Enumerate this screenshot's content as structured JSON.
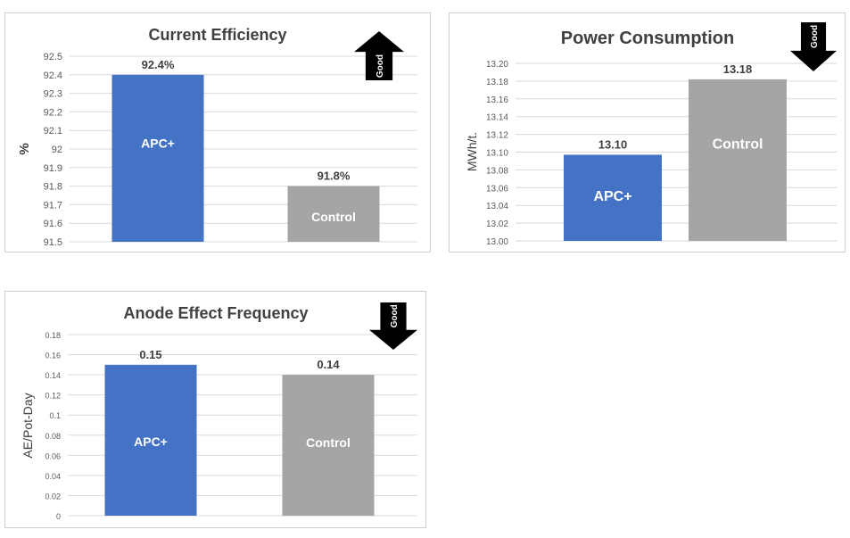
{
  "chart_data": [
    {
      "type": "bar",
      "title": "Current Efficiency",
      "ylabel": "%",
      "categories": [
        "APC+",
        "Control"
      ],
      "values": [
        92.4,
        91.8
      ],
      "data_labels": [
        "92.4%",
        "91.8%"
      ],
      "ylim": [
        91.5,
        92.5
      ],
      "ticks": [
        "91.5",
        "91.6",
        "91.7",
        "91.8",
        "91.9",
        "92",
        "92.1",
        "92.2",
        "92.3",
        "92.4",
        "92.5"
      ],
      "grid": true,
      "indicator": {
        "label": "Good",
        "direction": "up"
      },
      "colors": [
        "#4472C4",
        "#A5A5A5"
      ]
    },
    {
      "type": "bar",
      "title": "Power Consumption",
      "ylabel": "MWh/t.",
      "categories": [
        "APC+",
        "Control"
      ],
      "values": [
        13.097,
        13.182
      ],
      "data_labels": [
        "13.10",
        "13.18"
      ],
      "ylim": [
        13.0,
        13.2
      ],
      "ticks": [
        "13.00",
        "13.02",
        "13.04",
        "13.06",
        "13.08",
        "13.10",
        "13.12",
        "13.14",
        "13.16",
        "13.18",
        "13.20"
      ],
      "grid": true,
      "indicator": {
        "label": "Good",
        "direction": "down"
      },
      "colors": [
        "#4472C4",
        "#A5A5A5"
      ]
    },
    {
      "type": "bar",
      "title": "Anode Effect Frequency",
      "ylabel": "AE/Pot-Day",
      "categories": [
        "APC+",
        "Control"
      ],
      "values": [
        0.15,
        0.14
      ],
      "data_labels": [
        "0.15",
        "0.14"
      ],
      "ylim": [
        0,
        0.18
      ],
      "ticks": [
        "0",
        "0.02",
        "0.04",
        "0.06",
        "0.08",
        "0.1",
        "0.12",
        "0.14",
        "0.16",
        "0.18"
      ],
      "grid": true,
      "indicator": {
        "label": "Good",
        "direction": "down"
      },
      "colors": [
        "#4472C4",
        "#A5A5A5"
      ]
    }
  ]
}
